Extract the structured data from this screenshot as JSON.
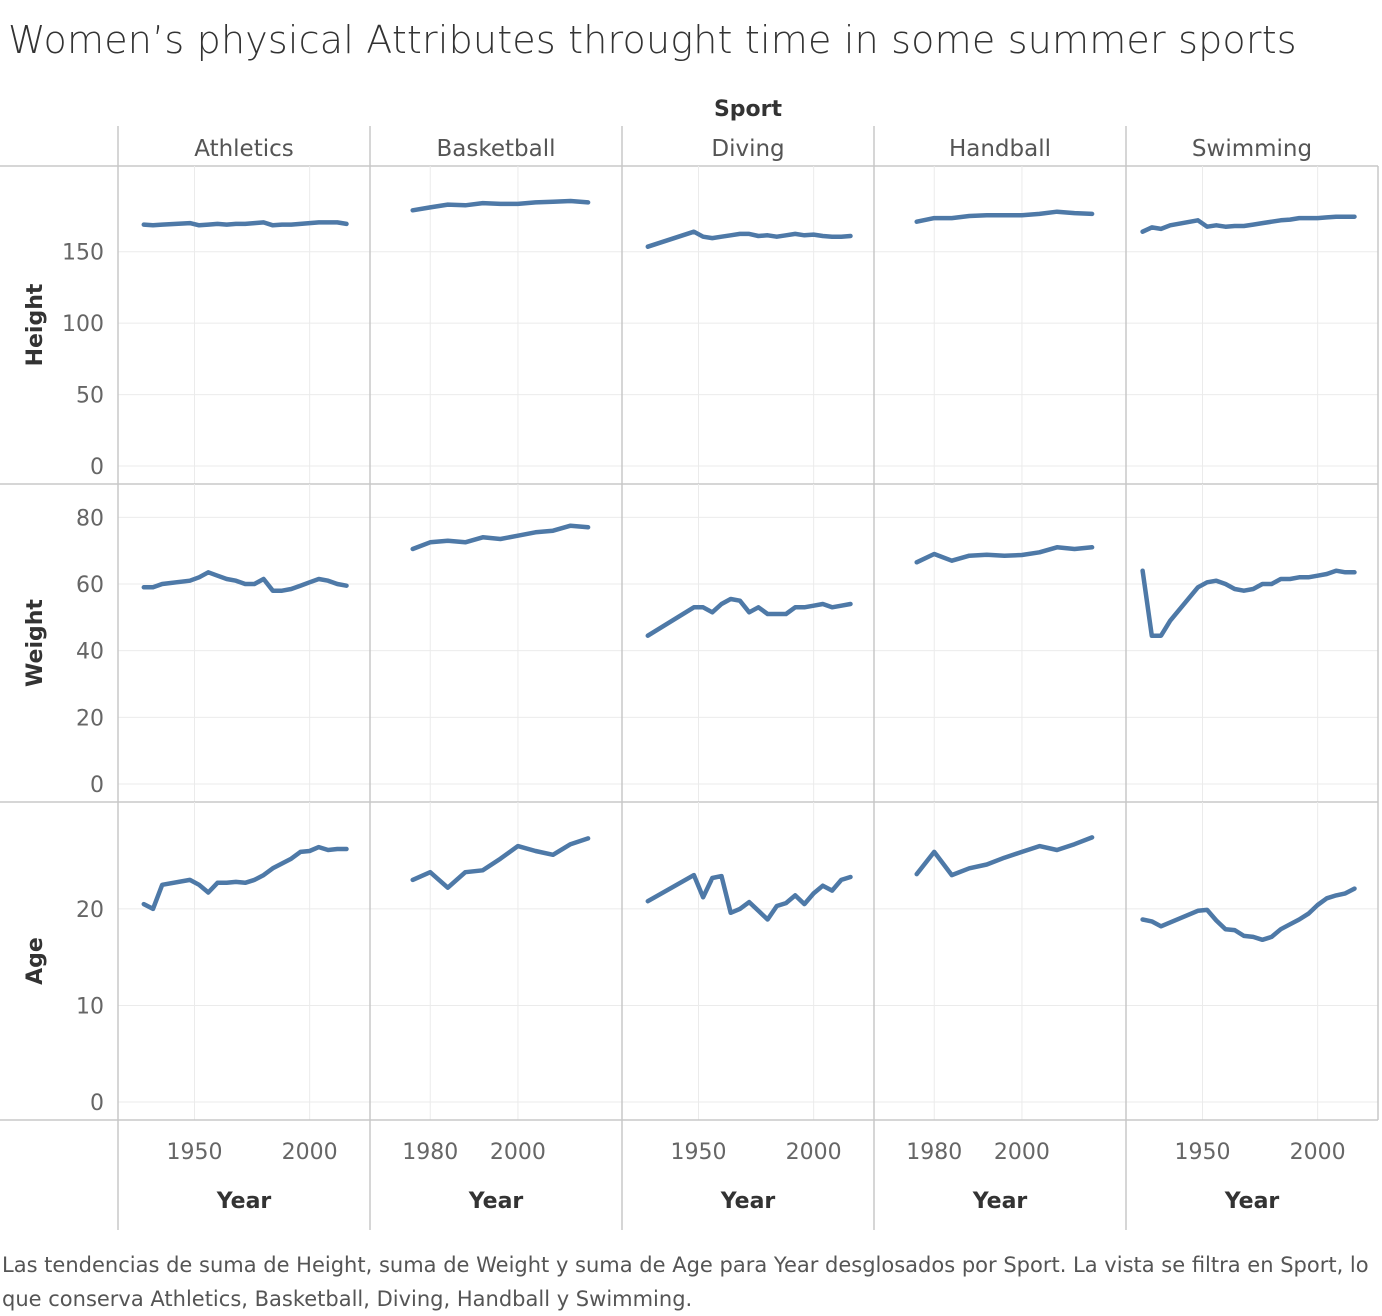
{
  "title": "Women’s physical Attributes throught time in some summer sports",
  "caption": "Las tendencias de suma de Height, suma de Weight y suma de Age para Year desglosados por Sport. La vista se filtra en Sport, lo que conserva Athletics, Basketball, Diving, Handball y Swimming.",
  "colors": {
    "line": "#4e79a7",
    "grid": "#ebebeb",
    "border": "#c8c8c8"
  },
  "chart_data": {
    "type": "line",
    "column_title": "Sport",
    "xlabel": "Year",
    "sports": [
      "Athletics",
      "Basketball",
      "Diving",
      "Handball",
      "Swimming"
    ],
    "measures": [
      {
        "name": "Height",
        "ticks": [
          0,
          50,
          100,
          150
        ],
        "ylim": [
          0,
          196
        ]
      },
      {
        "name": "Weight",
        "ticks": [
          0,
          20,
          40,
          60,
          80
        ],
        "ylim": [
          0,
          84
        ]
      },
      {
        "name": "Age",
        "ticks": [
          0,
          10,
          20
        ],
        "ylim": [
          0,
          29
        ]
      }
    ],
    "x_axes": {
      "Athletics": {
        "xlim": [
          1922,
          2021
        ],
        "ticks": [
          1950,
          2000
        ]
      },
      "Basketball": {
        "xlim": [
          1969,
          2021
        ],
        "ticks": [
          1980,
          2000
        ]
      },
      "Diving": {
        "xlim": [
          1922,
          2021
        ],
        "ticks": [
          1950,
          2000
        ]
      },
      "Handball": {
        "xlim": [
          1969,
          2021
        ],
        "ticks": [
          1980,
          2000
        ]
      },
      "Swimming": {
        "xlim": [
          1922,
          2021
        ],
        "ticks": [
          1950,
          2000
        ]
      }
    },
    "series": {
      "Athletics": {
        "years": [
          1928,
          1932,
          1936,
          1948,
          1952,
          1956,
          1960,
          1964,
          1968,
          1972,
          1976,
          1980,
          1984,
          1988,
          1992,
          1996,
          2000,
          2004,
          2008,
          2012,
          2016
        ],
        "Height": [
          169,
          168.5,
          169,
          170,
          168.5,
          169,
          169.5,
          169,
          169.5,
          169.5,
          170,
          170.5,
          168.5,
          169,
          169,
          169.5,
          170,
          170.5,
          170.5,
          170.5,
          169.5
        ],
        "Weight": [
          59,
          59,
          60,
          61,
          62,
          63.5,
          62.5,
          61.5,
          61,
          60,
          60,
          61.5,
          58,
          58,
          58.5,
          59.5,
          60.5,
          61.5,
          61,
          60,
          59.5
        ],
        "Age": [
          20.5,
          20,
          22.5,
          23,
          22.5,
          21.7,
          22.7,
          22.7,
          22.8,
          22.7,
          23,
          23.5,
          24.2,
          24.7,
          25.2,
          25.9,
          26,
          26.4,
          26.1,
          26.2,
          26.2
        ]
      },
      "Basketball": {
        "years": [
          1976,
          1980,
          1984,
          1988,
          1992,
          1996,
          2000,
          2004,
          2008,
          2012,
          2016
        ],
        "Height": [
          179,
          181,
          183,
          182.5,
          184,
          183.5,
          183.5,
          184.5,
          185,
          185.5,
          184.5
        ],
        "Weight": [
          70.5,
          72.5,
          73,
          72.5,
          74,
          73.5,
          74.5,
          75.5,
          76,
          77.5,
          77
        ],
        "Age": [
          23,
          23.8,
          22.2,
          23.8,
          24,
          25.2,
          26.5,
          26,
          25.6,
          26.7,
          27.3
        ]
      },
      "Diving": {
        "years": [
          1928,
          1948,
          1952,
          1956,
          1960,
          1964,
          1968,
          1972,
          1976,
          1980,
          1984,
          1988,
          1992,
          1996,
          2000,
          2004,
          2008,
          2012,
          2016
        ],
        "Height": [
          153.5,
          164,
          160.5,
          159.5,
          160.5,
          161.5,
          162.5,
          162.5,
          161,
          161.5,
          160.5,
          161.5,
          162.5,
          161.5,
          162,
          161,
          160.5,
          160.5,
          161
        ],
        "Weight": [
          44.5,
          53,
          53,
          51.5,
          54,
          55.5,
          55,
          51.5,
          53,
          51,
          51,
          51,
          53,
          53,
          53.5,
          54,
          53,
          53.5,
          54
        ],
        "Age": [
          20.8,
          23.5,
          21.2,
          23.2,
          23.4,
          19.6,
          20,
          20.7,
          19.8,
          18.9,
          20.3,
          20.6,
          21.4,
          20.5,
          21.6,
          22.4,
          21.9,
          23,
          23.3
        ]
      },
      "Handball": {
        "years": [
          1976,
          1980,
          1984,
          1988,
          1992,
          1996,
          2000,
          2004,
          2008,
          2012,
          2016
        ],
        "Height": [
          171,
          173.5,
          173.5,
          175,
          175.5,
          175.5,
          175.5,
          176.5,
          178,
          177,
          176.5
        ],
        "Weight": [
          66.5,
          69,
          67,
          68.5,
          68.8,
          68.5,
          68.7,
          69.5,
          71,
          70.5,
          71
        ],
        "Age": [
          23.6,
          25.9,
          23.5,
          24.2,
          24.6,
          25.3,
          25.9,
          26.5,
          26.1,
          26.7,
          27.4
        ]
      },
      "Swimming": {
        "years": [
          1924,
          1928,
          1932,
          1936,
          1948,
          1952,
          1956,
          1960,
          1964,
          1968,
          1972,
          1976,
          1980,
          1984,
          1988,
          1992,
          1996,
          2000,
          2004,
          2008,
          2012,
          2016
        ],
        "Height": [
          164,
          167,
          166,
          168.5,
          172,
          167.5,
          168.5,
          167.5,
          168,
          168,
          169,
          170,
          171,
          172,
          172.5,
          173.5,
          173.5,
          173.5,
          174,
          174.5,
          174.5,
          174.5
        ],
        "Weight": [
          64,
          44.5,
          44.5,
          49,
          59,
          60.5,
          61,
          60,
          58.5,
          58,
          58.5,
          60,
          60,
          61.5,
          61.5,
          62,
          62,
          62.5,
          63,
          64,
          63.5,
          63.5
        ],
        "Age": [
          18.9,
          18.7,
          18.2,
          18.6,
          19.8,
          19.9,
          18.8,
          17.9,
          17.8,
          17.2,
          17.1,
          16.8,
          17.1,
          17.9,
          18.4,
          18.9,
          19.5,
          20.4,
          21.1,
          21.4,
          21.6,
          22.1
        ]
      }
    }
  }
}
